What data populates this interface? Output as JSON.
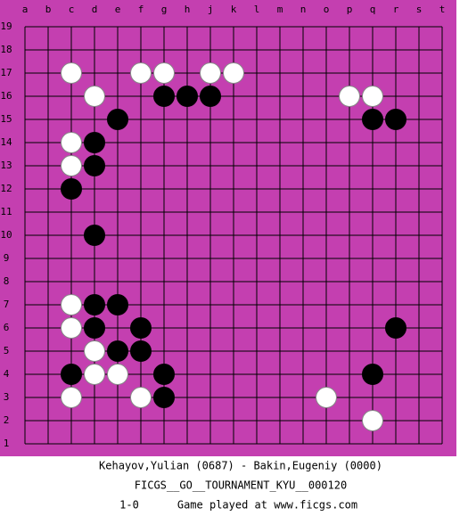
{
  "board": {
    "columns": [
      "a",
      "b",
      "c",
      "d",
      "e",
      "f",
      "g",
      "h",
      "j",
      "k",
      "l",
      "m",
      "n",
      "o",
      "p",
      "q",
      "r",
      "s",
      "t"
    ],
    "rows": [
      "19",
      "18",
      "17",
      "16",
      "15",
      "14",
      "13",
      "12",
      "11",
      "10",
      "9",
      "8",
      "7",
      "6",
      "5",
      "4",
      "3",
      "2",
      "1"
    ],
    "stones": [
      {
        "color": "white",
        "col": "c",
        "row": "17"
      },
      {
        "color": "white",
        "col": "f",
        "row": "17"
      },
      {
        "color": "white",
        "col": "g",
        "row": "17"
      },
      {
        "color": "white",
        "col": "j",
        "row": "17"
      },
      {
        "color": "white",
        "col": "k",
        "row": "17"
      },
      {
        "color": "white",
        "col": "d",
        "row": "16"
      },
      {
        "color": "black",
        "col": "g",
        "row": "16"
      },
      {
        "color": "black",
        "col": "h",
        "row": "16"
      },
      {
        "color": "black",
        "col": "j",
        "row": "16"
      },
      {
        "color": "white",
        "col": "p",
        "row": "16"
      },
      {
        "color": "white",
        "col": "q",
        "row": "16"
      },
      {
        "color": "black",
        "col": "e",
        "row": "15"
      },
      {
        "color": "black",
        "col": "q",
        "row": "15"
      },
      {
        "color": "black",
        "col": "r",
        "row": "15"
      },
      {
        "color": "white",
        "col": "c",
        "row": "14"
      },
      {
        "color": "black",
        "col": "d",
        "row": "14"
      },
      {
        "color": "white",
        "col": "c",
        "row": "13"
      },
      {
        "color": "black",
        "col": "d",
        "row": "13"
      },
      {
        "color": "black",
        "col": "c",
        "row": "12"
      },
      {
        "color": "black",
        "col": "d",
        "row": "10"
      },
      {
        "color": "white",
        "col": "c",
        "row": "7"
      },
      {
        "color": "black",
        "col": "d",
        "row": "7"
      },
      {
        "color": "black",
        "col": "e",
        "row": "7"
      },
      {
        "color": "white",
        "col": "c",
        "row": "6"
      },
      {
        "color": "black",
        "col": "d",
        "row": "6"
      },
      {
        "color": "black",
        "col": "f",
        "row": "6"
      },
      {
        "color": "black",
        "col": "r",
        "row": "6"
      },
      {
        "color": "white",
        "col": "d",
        "row": "5"
      },
      {
        "color": "black",
        "col": "e",
        "row": "5"
      },
      {
        "color": "black",
        "col": "f",
        "row": "5"
      },
      {
        "color": "black",
        "col": "c",
        "row": "4"
      },
      {
        "color": "white",
        "col": "d",
        "row": "4"
      },
      {
        "color": "white",
        "col": "e",
        "row": "4"
      },
      {
        "color": "black",
        "col": "g",
        "row": "4"
      },
      {
        "color": "black",
        "col": "q",
        "row": "4"
      },
      {
        "color": "white",
        "col": "c",
        "row": "3"
      },
      {
        "color": "white",
        "col": "f",
        "row": "3"
      },
      {
        "color": "black",
        "col": "g",
        "row": "3"
      },
      {
        "color": "white",
        "col": "o",
        "row": "3"
      },
      {
        "color": "white",
        "col": "q",
        "row": "2"
      }
    ]
  },
  "footer": {
    "players": "Kehayov,Yulian (0687) - Bakin,Eugeniy (0000)",
    "tournament": "FICGS__GO__TOURNAMENT_KYU__000120",
    "result": "1-0",
    "note": "Game played at www.ficgs.com"
  }
}
